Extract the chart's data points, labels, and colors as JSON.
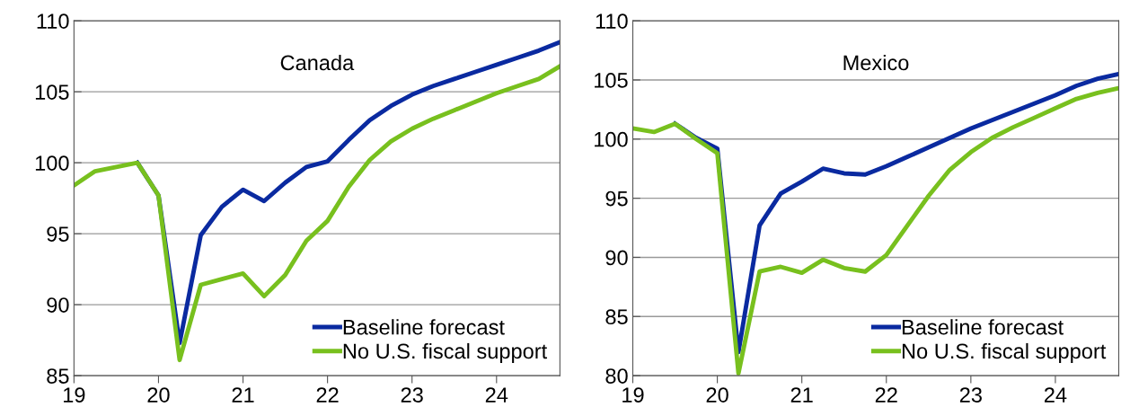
{
  "chart_data": [
    {
      "type": "line",
      "title": "Canada",
      "x": [
        19,
        19.25,
        19.5,
        19.75,
        20,
        20.25,
        20.5,
        20.75,
        21,
        21.25,
        21.5,
        21.75,
        22,
        22.25,
        22.5,
        22.75,
        23,
        23.25,
        23.5,
        23.75,
        24,
        24.25,
        24.5,
        24.75
      ],
      "series": [
        {
          "name": "Baseline forecast",
          "color": "#0a2aa0",
          "values": [
            null,
            null,
            null,
            100.0,
            97.7,
            87.3,
            94.9,
            96.9,
            98.1,
            97.3,
            98.6,
            99.7,
            100.1,
            101.6,
            103.0,
            104.0,
            104.8,
            105.4,
            105.9,
            106.4,
            106.9,
            107.4,
            107.9,
            108.5
          ]
        },
        {
          "name": "No U.S. fiscal support",
          "color": "#78c01e",
          "values": [
            98.4,
            99.4,
            99.7,
            100.0,
            97.7,
            86.1,
            91.4,
            91.8,
            92.2,
            90.6,
            92.1,
            94.5,
            95.9,
            98.3,
            100.2,
            101.5,
            102.4,
            103.1,
            103.7,
            104.3,
            104.9,
            105.4,
            105.9,
            106.8
          ]
        }
      ],
      "xlim": [
        19,
        24.75
      ],
      "xticks": [
        19,
        20,
        21,
        22,
        23,
        24
      ],
      "ylim": [
        85,
        110
      ],
      "yticks": [
        85,
        90,
        95,
        100,
        105,
        110
      ],
      "grid": "y",
      "legend": "bottom right",
      "marker": "none",
      "line_style": "solid"
    },
    {
      "type": "line",
      "title": "Mexico",
      "x": [
        19,
        19.25,
        19.5,
        19.75,
        20,
        20.25,
        20.5,
        20.75,
        21,
        21.25,
        21.5,
        21.75,
        22,
        22.25,
        22.5,
        22.75,
        23,
        23.25,
        23.5,
        23.75,
        24,
        24.25,
        24.5,
        24.75
      ],
      "series": [
        {
          "name": "Baseline forecast",
          "color": "#0a2aa0",
          "values": [
            null,
            null,
            101.3,
            100.1,
            99.2,
            82.0,
            92.7,
            95.4,
            96.4,
            97.5,
            97.1,
            97.0,
            97.7,
            98.5,
            99.3,
            100.1,
            100.9,
            101.6,
            102.3,
            103.0,
            103.7,
            104.5,
            105.1,
            105.5
          ]
        },
        {
          "name": "No U.S. fiscal support",
          "color": "#78c01e",
          "values": [
            100.9,
            100.6,
            101.3,
            100.0,
            98.8,
            80.2,
            88.8,
            89.2,
            88.7,
            89.8,
            89.1,
            88.8,
            90.2,
            92.7,
            95.2,
            97.4,
            98.9,
            100.1,
            101.0,
            101.8,
            102.6,
            103.4,
            103.9,
            104.3
          ]
        }
      ],
      "xlim": [
        19,
        24.75
      ],
      "xticks": [
        19,
        20,
        21,
        22,
        23,
        24
      ],
      "ylim": [
        80,
        110
      ],
      "yticks": [
        80,
        85,
        90,
        95,
        100,
        105,
        110
      ],
      "grid": "y",
      "legend": "bottom right",
      "marker": "none",
      "line_style": "solid"
    }
  ]
}
